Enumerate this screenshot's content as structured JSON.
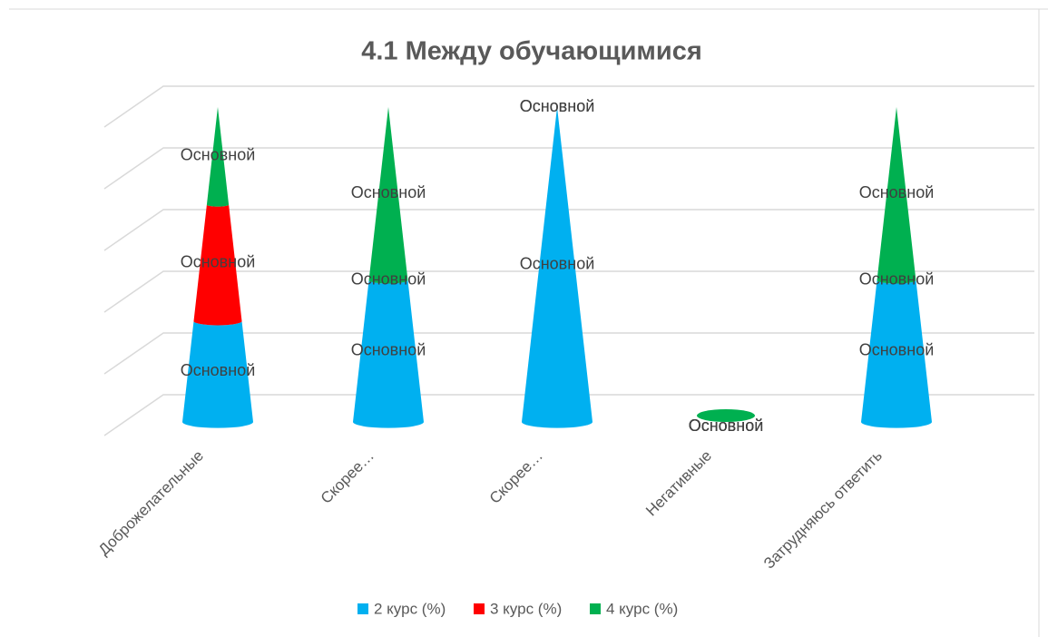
{
  "chart_data": {
    "type": "cone3d_stacked",
    "title": "4.1 Между обучающимися",
    "categories": [
      "Доброжелательные",
      "Скорее…",
      "Скорее…",
      "Негативные",
      "Затрудняюсь ответить"
    ],
    "series": [
      {
        "name": "2 курс (%)",
        "color": "#00b0f0",
        "values": [
          32,
          45,
          100,
          0,
          45
        ],
        "value_labels": [
          "Основной",
          "Основной",
          "Основной",
          "Основной",
          "Основной"
        ]
      },
      {
        "name": "3 курс (%)",
        "color": "#ff0000",
        "values": [
          37,
          0,
          0,
          0,
          0
        ],
        "value_labels": [
          "Основной",
          "Основной",
          "Основной",
          "Основной",
          "Основной"
        ]
      },
      {
        "name": "4 курс (%)",
        "color": "#00b050",
        "values": [
          31,
          55,
          0,
          0,
          55
        ],
        "value_labels": [
          "Основной",
          "Основной",
          "Основной",
          "Основной",
          "Основной"
        ]
      }
    ],
    "ylim": [
      0,
      100
    ],
    "yticks": [
      0,
      20,
      40,
      60,
      80,
      100
    ],
    "grid": true,
    "legend": "bottom"
  }
}
